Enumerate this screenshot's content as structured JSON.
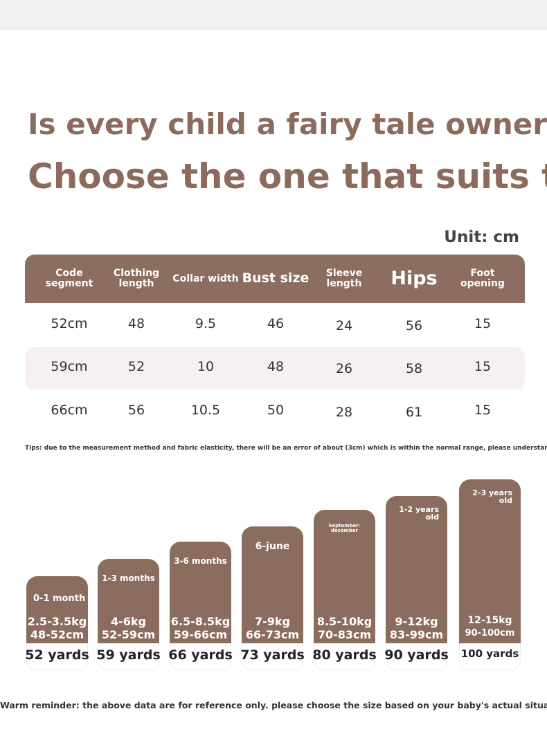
{
  "header": {
    "line1": "Is every child a fairy tale owner?",
    "line2": "Choose the one that suits ta",
    "unit": "Unit: cm"
  },
  "table": {
    "columns": [
      "Code segment",
      "Clothing length",
      "Collar width",
      "Bust size",
      "Sleeve length",
      "Hips",
      "Foot opening"
    ],
    "rows": [
      [
        "52cm",
        48,
        9.5,
        46,
        24,
        56,
        15
      ],
      [
        "59cm",
        52,
        10,
        48,
        26,
        58,
        15
      ],
      [
        "66cm",
        56,
        10.5,
        50,
        28,
        61,
        15
      ]
    ]
  },
  "tips": "Tips: due to the measurement method and fabric elasticity, there will be an error of about (3cm) which is within the normal range, please understand!",
  "sizes": [
    {
      "age": "0-1 month",
      "weight": "2.5-3.5kg",
      "length": "48-52cm",
      "yards": "52 yards"
    },
    {
      "age": "1-3 months",
      "weight": "4-6kg",
      "length": "52-59cm",
      "yards": "59 yards"
    },
    {
      "age": "3-6 months",
      "weight": "6.5-8.5kg",
      "length": "59-66cm",
      "yards": "66 yards"
    },
    {
      "age": "6-june",
      "weight": "7-9kg",
      "length": "66-73cm",
      "yards": "73 yards"
    },
    {
      "age": "September-december",
      "weight": "8.5-10kg",
      "length": "70-83cm",
      "yards": "80 yards"
    },
    {
      "age": "1-2 years old",
      "weight": "9-12kg",
      "length": "83-99cm",
      "yards": "90 yards"
    },
    {
      "age": "2-3 years old",
      "weight": "12-15kg",
      "length": "90-100cm",
      "yards": "100 yards"
    }
  ],
  "reminder": "Warm reminder: the above data are for reference only. please choose the size based on your baby's actual situation"
}
